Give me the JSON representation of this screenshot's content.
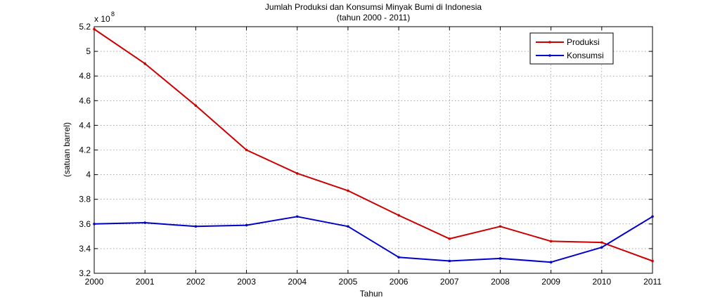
{
  "chart_data": {
    "type": "line",
    "title": "Jumlah Produksi dan Konsumsi Minyak Bumi di Indonesia",
    "subtitle": "(tahun 2000 - 2011)",
    "xlabel": "Tahun",
    "ylabel": "(satuan barrel)",
    "y_multiplier_base": "x 10",
    "y_multiplier_exp": "8",
    "x": [
      2000,
      2001,
      2002,
      2003,
      2004,
      2005,
      2006,
      2007,
      2008,
      2009,
      2010,
      2011
    ],
    "x_tick_labels": [
      "2000",
      "2001",
      "2002",
      "2003",
      "2004",
      "2005",
      "2006",
      "2007",
      "2008",
      "2009",
      "2010",
      "2011"
    ],
    "y_ticks": [
      3.2,
      3.4,
      3.6,
      3.8,
      4.0,
      4.2,
      4.4,
      4.6,
      4.8,
      5.0,
      5.2
    ],
    "y_tick_labels": [
      "3.2",
      "3.4",
      "3.6",
      "3.8",
      "4",
      "4.2",
      "4.4",
      "4.6",
      "4.8",
      "5",
      "5.2"
    ],
    "xlim": [
      2000,
      2011
    ],
    "ylim": [
      3.2,
      5.2
    ],
    "grid": true,
    "legend_position": "top-right",
    "series": [
      {
        "name": "Produksi",
        "color": "#cc0000",
        "values": [
          5.18,
          4.9,
          4.56,
          4.2,
          4.01,
          3.87,
          3.67,
          3.48,
          3.58,
          3.46,
          3.45,
          3.3
        ]
      },
      {
        "name": "Konsumsi",
        "color": "#0000cc",
        "values": [
          3.6,
          3.61,
          3.58,
          3.59,
          3.66,
          3.58,
          3.33,
          3.3,
          3.32,
          3.29,
          3.41,
          3.66
        ]
      }
    ]
  }
}
